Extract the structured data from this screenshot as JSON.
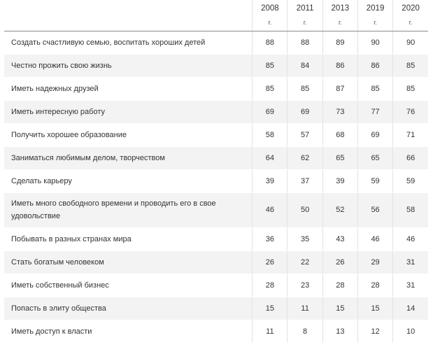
{
  "table": {
    "columns": [
      {
        "year": "2008",
        "suffix": "г."
      },
      {
        "year": "2011",
        "suffix": "г."
      },
      {
        "year": "2013",
        "suffix": "г."
      },
      {
        "year": "2019",
        "suffix": "г."
      },
      {
        "year": "2020",
        "suffix": "г."
      }
    ],
    "rows": [
      {
        "label": "Создать счастливую семью, воспитать хороших детей",
        "values": [
          "88",
          "88",
          "89",
          "90",
          "90"
        ]
      },
      {
        "label": "Честно прожить свою жизнь",
        "values": [
          "85",
          "84",
          "86",
          "86",
          "85"
        ]
      },
      {
        "label": "Иметь надежных друзей",
        "values": [
          "85",
          "85",
          "87",
          "85",
          "85"
        ]
      },
      {
        "label": "Иметь интересную работу",
        "values": [
          "69",
          "69",
          "73",
          "77",
          "76"
        ]
      },
      {
        "label": "Получить хорошее образование",
        "values": [
          "58",
          "57",
          "68",
          "69",
          "71"
        ]
      },
      {
        "label": "Заниматься любимым делом, творчеством",
        "values": [
          "64",
          "62",
          "65",
          "65",
          "66"
        ]
      },
      {
        "label": "Сделать карьеру",
        "values": [
          "39",
          "37",
          "39",
          "59",
          "59"
        ]
      },
      {
        "label": "Иметь много свободного времени и проводить его в свое удовольствие",
        "values": [
          "46",
          "50",
          "52",
          "56",
          "58"
        ]
      },
      {
        "label": "Побывать в разных странах мира",
        "values": [
          "36",
          "35",
          "43",
          "46",
          "46"
        ]
      },
      {
        "label": "Стать богатым человеком",
        "values": [
          "26",
          "22",
          "26",
          "29",
          "31"
        ]
      },
      {
        "label": "Иметь собственный бизнес",
        "values": [
          "28",
          "23",
          "28",
          "28",
          "31"
        ]
      },
      {
        "label": "Попасть в элиту общества",
        "values": [
          "15",
          "11",
          "15",
          "15",
          "14"
        ]
      },
      {
        "label": "Иметь доступ к власти",
        "values": [
          "11",
          "8",
          "13",
          "12",
          "10"
        ]
      }
    ]
  }
}
